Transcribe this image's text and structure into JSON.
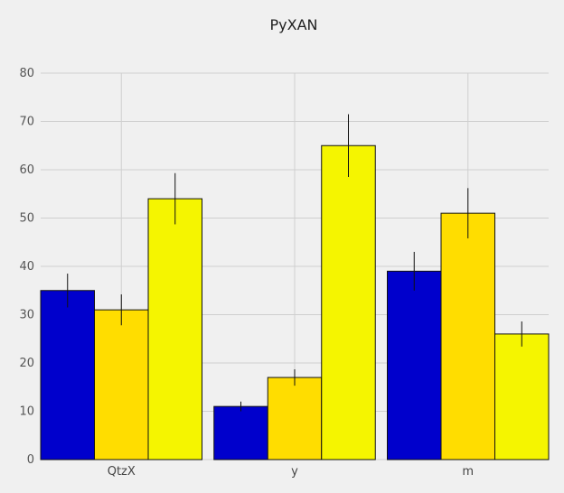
{
  "chart_data": {
    "type": "bar",
    "title": "PyXAN",
    "xlabel": "",
    "ylabel": "",
    "categories": [
      "QtzX",
      "y",
      "m"
    ],
    "ylim": [
      0,
      80
    ],
    "yticks": [
      0,
      10,
      20,
      30,
      40,
      50,
      60,
      70,
      80
    ],
    "grid": true,
    "legend": "none",
    "series": [
      {
        "color": "#0000cc",
        "values": [
          35,
          11,
          39
        ],
        "errors": [
          3.5,
          1.0,
          4.0
        ]
      },
      {
        "color": "#ffdd00",
        "values": [
          31,
          17,
          51
        ],
        "errors": [
          3.2,
          1.7,
          5.2
        ]
      },
      {
        "color": "#f5f500",
        "values": [
          54,
          65,
          26
        ],
        "errors": [
          5.3,
          6.5,
          2.6
        ]
      }
    ]
  }
}
